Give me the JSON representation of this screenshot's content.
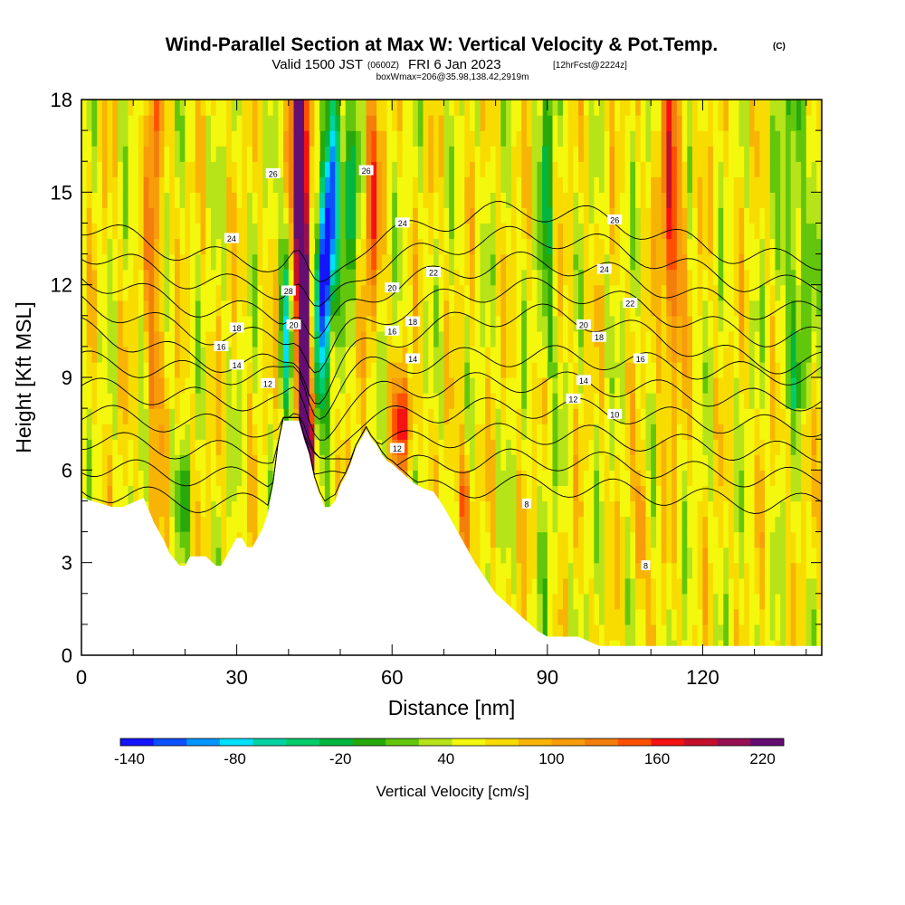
{
  "header": {
    "title": "Wind-Parallel Section at Max W: Vertical Velocity & Pot.Temp.",
    "title_mark": "(C)",
    "valid_prefix": "Valid 1500 JST",
    "valid_utc": "(0600Z)",
    "valid_date": "FRI 6 Jan 2023",
    "forecast": "[12hrFcst@2224z]",
    "boxmax": "boxWmax=206@35.98,138.42,2919m"
  },
  "chart_data": {
    "type": "heatmap",
    "xlabel": "Distance [nm]",
    "ylabel": "Height [Kft MSL]",
    "xlim": [
      0,
      143
    ],
    "ylim": [
      0,
      18
    ],
    "x_ticks": [
      0,
      30,
      60,
      90,
      120
    ],
    "y_ticks": [
      0,
      3,
      6,
      9,
      12,
      15,
      18
    ],
    "terrain": {
      "x": [
        0,
        6,
        8,
        12,
        14,
        15,
        16,
        17,
        19,
        20,
        21,
        22,
        24,
        26,
        27,
        28,
        29,
        30,
        31,
        32,
        33,
        34,
        35,
        36,
        37,
        38,
        39,
        40,
        41,
        42,
        43,
        44,
        45,
        46,
        47,
        48,
        49,
        50,
        51,
        52,
        53,
        54,
        55,
        56,
        57,
        58,
        59,
        60,
        62,
        64,
        66,
        68,
        70,
        72,
        74,
        76,
        78,
        80,
        82,
        84,
        86,
        88,
        90,
        93,
        96,
        100,
        105,
        110,
        115,
        120,
        130,
        140,
        143
      ],
      "height": [
        5.1,
        4.8,
        4.8,
        5.1,
        4.3,
        4.0,
        3.7,
        3.3,
        2.9,
        2.9,
        3.2,
        3.2,
        3.2,
        2.9,
        2.9,
        3.2,
        3.5,
        3.8,
        3.8,
        3.5,
        3.5,
        3.8,
        4.1,
        4.6,
        5.5,
        6.8,
        7.6,
        7.6,
        7.6,
        7.6,
        7.0,
        6.5,
        5.7,
        5.2,
        4.8,
        4.8,
        5.0,
        5.5,
        5.8,
        6.2,
        6.7,
        7.0,
        7.3,
        7.0,
        6.8,
        6.5,
        6.3,
        6.2,
        5.9,
        5.6,
        5.4,
        5.3,
        4.8,
        4.2,
        3.6,
        3.0,
        2.5,
        2.0,
        1.7,
        1.4,
        1.1,
        0.8,
        0.6,
        0.6,
        0.6,
        0.3,
        0.3,
        0.3,
        0.3,
        0.3,
        0.3,
        0.3,
        0.3
      ]
    },
    "theta_contours": {
      "units": "Pot.Temp.",
      "levels": [
        8,
        10,
        12,
        14,
        16,
        18,
        20,
        22,
        24,
        26,
        28
      ]
    },
    "contour_labels": [
      {
        "x": 36,
        "y": 8.8,
        "text": "12"
      },
      {
        "x": 30,
        "y": 9.4,
        "text": "14"
      },
      {
        "x": 27,
        "y": 10.0,
        "text": "16"
      },
      {
        "x": 30,
        "y": 10.6,
        "text": "18"
      },
      {
        "x": 29,
        "y": 13.5,
        "text": "24"
      },
      {
        "x": 37,
        "y": 15.6,
        "text": "26"
      },
      {
        "x": 40,
        "y": 11.8,
        "text": "28"
      },
      {
        "x": 41,
        "y": 10.7,
        "text": "20"
      },
      {
        "x": 55,
        "y": 15.7,
        "text": "26"
      },
      {
        "x": 62,
        "y": 14.0,
        "text": "24"
      },
      {
        "x": 68,
        "y": 12.4,
        "text": "22"
      },
      {
        "x": 60,
        "y": 11.9,
        "text": "20"
      },
      {
        "x": 64,
        "y": 10.8,
        "text": "18"
      },
      {
        "x": 60,
        "y": 10.5,
        "text": "16"
      },
      {
        "x": 64,
        "y": 9.6,
        "text": "14"
      },
      {
        "x": 61,
        "y": 6.7,
        "text": "12"
      },
      {
        "x": 103,
        "y": 14.1,
        "text": "26"
      },
      {
        "x": 101,
        "y": 12.5,
        "text": "24"
      },
      {
        "x": 106,
        "y": 11.4,
        "text": "22"
      },
      {
        "x": 97,
        "y": 10.7,
        "text": "20"
      },
      {
        "x": 100,
        "y": 10.3,
        "text": "18"
      },
      {
        "x": 108,
        "y": 9.6,
        "text": "16"
      },
      {
        "x": 97,
        "y": 8.9,
        "text": "14"
      },
      {
        "x": 95,
        "y": 8.3,
        "text": "12"
      },
      {
        "x": 103,
        "y": 7.8,
        "text": "10"
      },
      {
        "x": 86,
        "y": 4.9,
        "text": "8"
      },
      {
        "x": 109,
        "y": 2.9,
        "text": "8"
      }
    ],
    "colorbar": {
      "label": "Vertical Velocity [cm/s]",
      "tick_labels": [
        "-140",
        "-80",
        "-20",
        "40",
        "100",
        "160",
        "220"
      ],
      "tick_positions": [
        0,
        4,
        8,
        12,
        16,
        20,
        24
      ],
      "colors": [
        "#1414ff",
        "#0c50ff",
        "#0095ff",
        "#00e0ff",
        "#00d2a2",
        "#00cd6a",
        "#02b63f",
        "#27a90c",
        "#62c60c",
        "#b6e418",
        "#f3f80c",
        "#f8dc00",
        "#f8b404",
        "#f89c0c",
        "#f47e0b",
        "#ff5000",
        "#f41212",
        "#c40f2a",
        "#951052",
        "#640e74"
      ]
    }
  }
}
